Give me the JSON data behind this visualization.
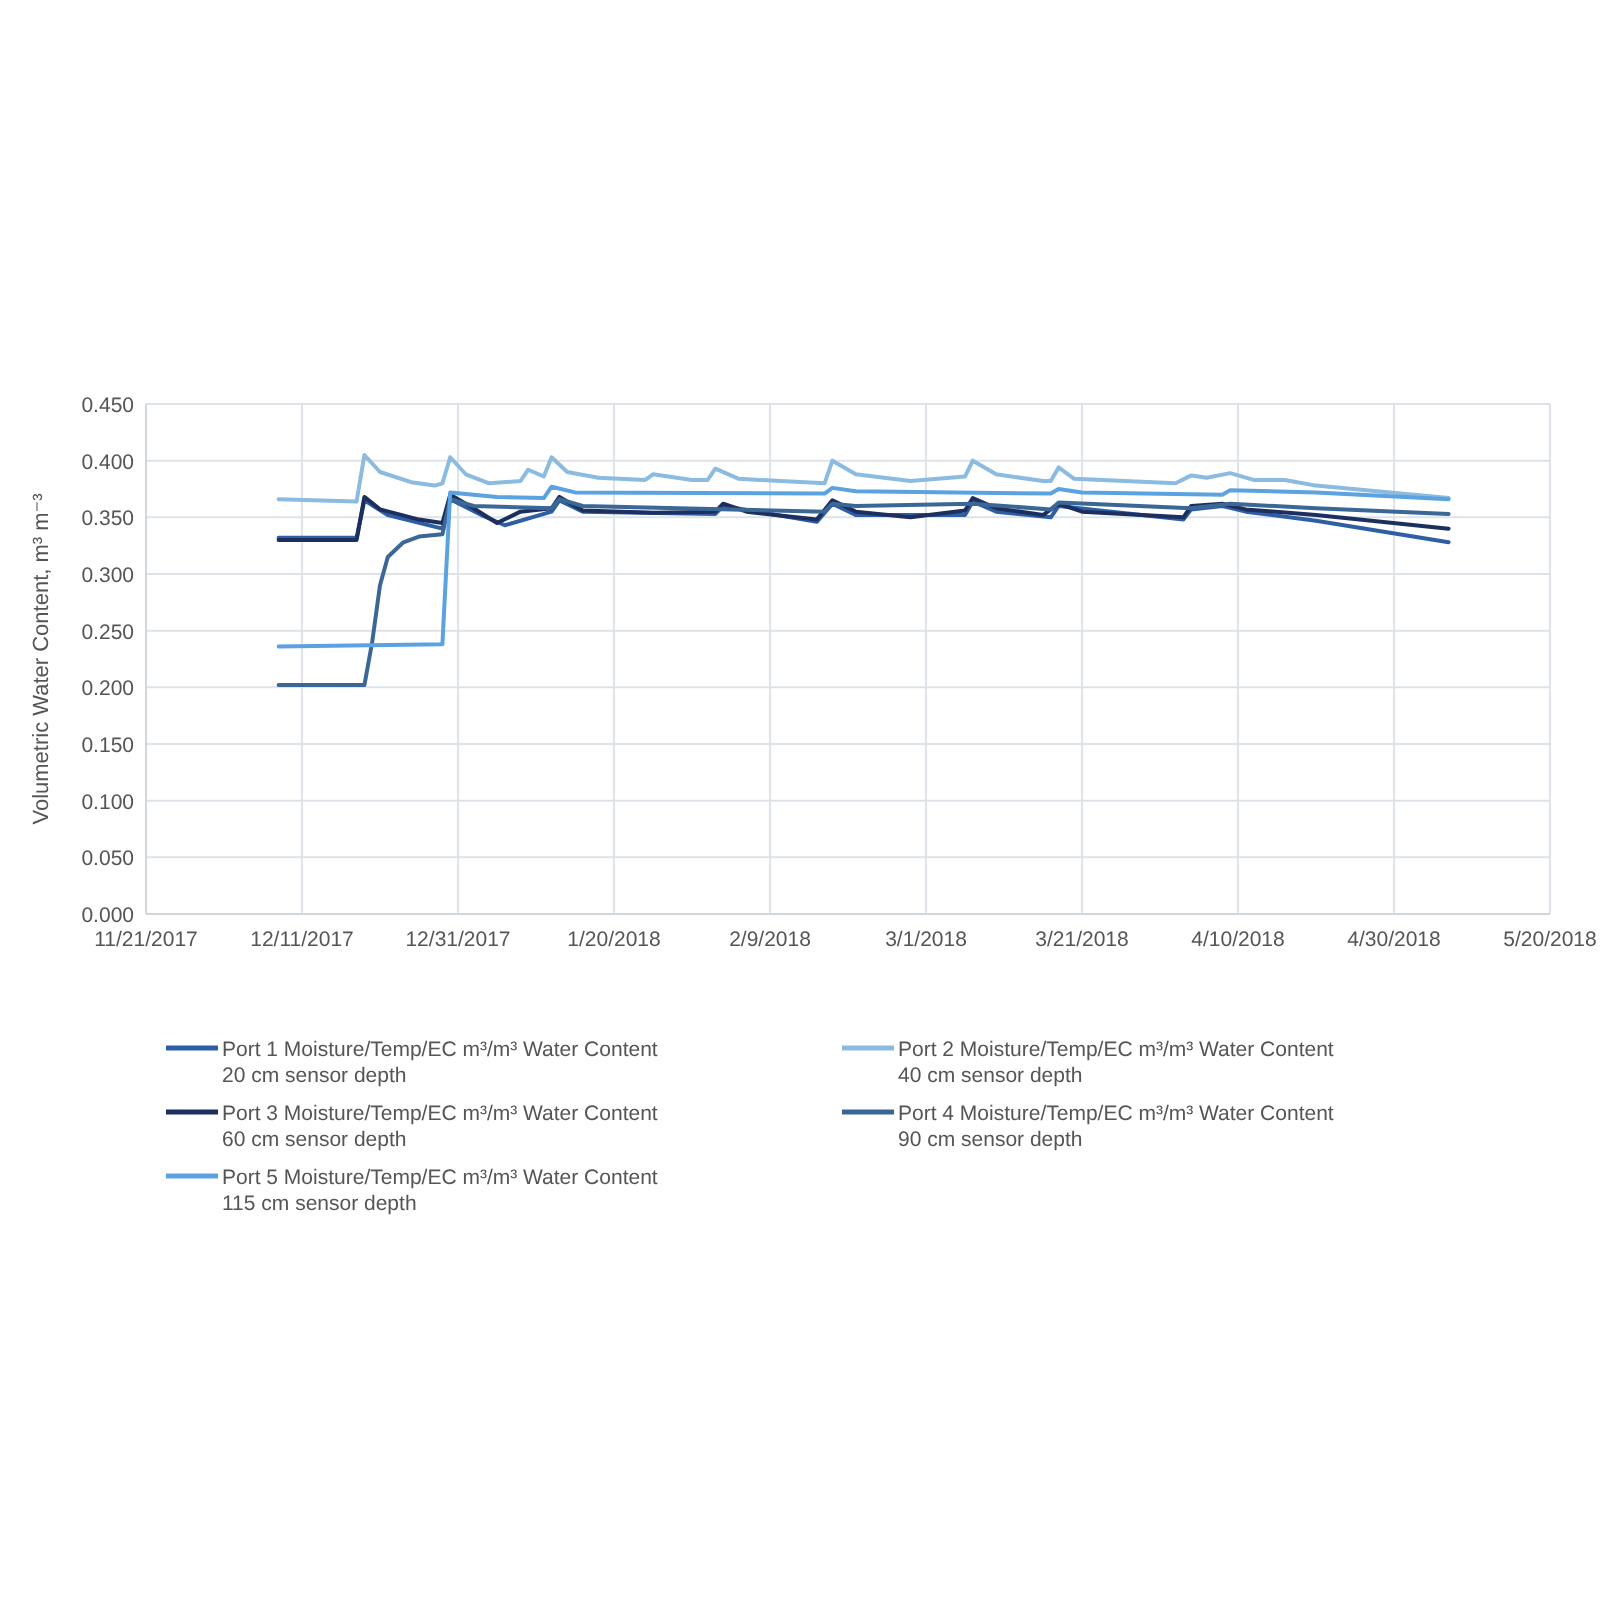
{
  "chart_data": {
    "type": "line",
    "ylabel": "Volumetric Water Content, m³ m⁻³",
    "xlim": [
      "2017-11-21",
      "2018-05-20"
    ],
    "xticks": [
      {
        "value": "2017-11-21",
        "label": "11/21/2017"
      },
      {
        "value": "2017-12-11",
        "label": "12/11/2017"
      },
      {
        "value": "2017-12-31",
        "label": "12/31/2017"
      },
      {
        "value": "2018-01-20",
        "label": "1/20/2018"
      },
      {
        "value": "2018-02-09",
        "label": "2/9/2018"
      },
      {
        "value": "2018-03-01",
        "label": "3/1/2018"
      },
      {
        "value": "2018-03-21",
        "label": "3/21/2018"
      },
      {
        "value": "2018-04-10",
        "label": "4/10/2018"
      },
      {
        "value": "2018-04-30",
        "label": "4/30/2018"
      },
      {
        "value": "2018-05-20",
        "label": "5/20/2018"
      }
    ],
    "ylim": [
      0,
      0.45
    ],
    "yticks": [
      {
        "value": 0,
        "label": "0.000"
      },
      {
        "value": 0.05,
        "label": "0.050"
      },
      {
        "value": 0.1,
        "label": "0.100"
      },
      {
        "value": 0.15,
        "label": "0.150"
      },
      {
        "value": 0.2,
        "label": "0.200"
      },
      {
        "value": 0.25,
        "label": "0.250"
      },
      {
        "value": 0.3,
        "label": "0.300"
      },
      {
        "value": 0.35,
        "label": "0.350"
      },
      {
        "value": 0.4,
        "label": "0.400"
      },
      {
        "value": 0.45,
        "label": "0.450"
      }
    ],
    "grid": true,
    "legend": "bottom",
    "line_style": "solid",
    "marker": "none",
    "series": [
      {
        "name": "Port 1 Moisture/Temp/EC m³/m³ Water Content\n20 cm sensor depth",
        "color": "#2e5fa6",
        "x": [
          "2017-12-08",
          "2017-12-18",
          "2017-12-19",
          "2017-12-22",
          "2017-12-29",
          "2017-12-30",
          "2018-01-03",
          "2018-01-06",
          "2018-01-12",
          "2018-01-13",
          "2018-01-16",
          "2018-02-02",
          "2018-02-03",
          "2018-02-15",
          "2018-02-17",
          "2018-02-20",
          "2018-03-06",
          "2018-03-07",
          "2018-03-10",
          "2018-03-17",
          "2018-03-18",
          "2018-04-03",
          "2018-04-04",
          "2018-04-08",
          "2018-04-11",
          "2018-04-20",
          "2018-05-07"
        ],
        "values": [
          0.332,
          0.332,
          0.365,
          0.352,
          0.34,
          0.366,
          0.352,
          0.343,
          0.355,
          0.365,
          0.355,
          0.353,
          0.36,
          0.346,
          0.362,
          0.352,
          0.352,
          0.364,
          0.355,
          0.35,
          0.36,
          0.348,
          0.357,
          0.36,
          0.355,
          0.347,
          0.328
        ]
      },
      {
        "name": "Port 2 Moisture/Temp/EC m³/m³ Water Content\n40 cm sensor depth",
        "color": "#8bbbe0",
        "x": [
          "2017-12-08",
          "2017-12-18",
          "2017-12-19",
          "2017-12-21",
          "2017-12-25",
          "2017-12-28",
          "2017-12-29",
          "2017-12-30",
          "2018-01-01",
          "2018-01-04",
          "2018-01-08",
          "2018-01-09",
          "2018-01-11",
          "2018-01-12",
          "2018-01-14",
          "2018-01-18",
          "2018-01-24",
          "2018-01-25",
          "2018-01-30",
          "2018-02-01",
          "2018-02-02",
          "2018-02-05",
          "2018-02-16",
          "2018-02-17",
          "2018-02-20",
          "2018-02-27",
          "2018-03-06",
          "2018-03-07",
          "2018-03-10",
          "2018-03-16",
          "2018-03-17",
          "2018-03-18",
          "2018-03-20",
          "2018-04-02",
          "2018-04-04",
          "2018-04-06",
          "2018-04-09",
          "2018-04-12",
          "2018-04-16",
          "2018-04-20",
          "2018-05-07"
        ],
        "values": [
          0.366,
          0.364,
          0.405,
          0.39,
          0.381,
          0.378,
          0.38,
          0.403,
          0.388,
          0.38,
          0.382,
          0.392,
          0.386,
          0.403,
          0.39,
          0.385,
          0.383,
          0.388,
          0.383,
          0.383,
          0.393,
          0.384,
          0.38,
          0.4,
          0.388,
          0.382,
          0.386,
          0.4,
          0.388,
          0.382,
          0.382,
          0.394,
          0.384,
          0.38,
          0.387,
          0.385,
          0.389,
          0.383,
          0.383,
          0.378,
          0.367
        ]
      },
      {
        "name": "Port 3 Moisture/Temp/EC m³/m³ Water Content\n60 cm sensor depth",
        "color": "#1c2f5e",
        "x": [
          "2017-12-08",
          "2017-12-18",
          "2017-12-19",
          "2017-12-21",
          "2017-12-26",
          "2017-12-29",
          "2017-12-30",
          "2018-01-02",
          "2018-01-05",
          "2018-01-08",
          "2018-01-12",
          "2018-01-13",
          "2018-01-16",
          "2018-01-25",
          "2018-02-02",
          "2018-02-03",
          "2018-02-06",
          "2018-02-15",
          "2018-02-17",
          "2018-02-20",
          "2018-02-27",
          "2018-03-06",
          "2018-03-07",
          "2018-03-10",
          "2018-03-16",
          "2018-03-18",
          "2018-03-21",
          "2018-04-03",
          "2018-04-04",
          "2018-04-08",
          "2018-04-11",
          "2018-04-20",
          "2018-05-07"
        ],
        "values": [
          0.33,
          0.33,
          0.368,
          0.357,
          0.348,
          0.345,
          0.37,
          0.358,
          0.345,
          0.355,
          0.358,
          0.368,
          0.356,
          0.354,
          0.355,
          0.362,
          0.355,
          0.348,
          0.365,
          0.355,
          0.35,
          0.356,
          0.367,
          0.358,
          0.352,
          0.362,
          0.355,
          0.35,
          0.36,
          0.362,
          0.357,
          0.352,
          0.34
        ]
      },
      {
        "name": "Port 4 Moisture/Temp/EC m³/m³ Water Content\n90 cm sensor depth",
        "color": "#3b6797",
        "x": [
          "2017-12-08",
          "2017-12-19",
          "2017-12-20",
          "2017-12-21",
          "2017-12-22",
          "2017-12-24",
          "2017-12-26",
          "2017-12-29",
          "2017-12-30",
          "2018-01-02",
          "2018-01-12",
          "2018-01-13",
          "2018-01-16",
          "2018-02-16",
          "2018-02-17",
          "2018-02-20",
          "2018-03-07",
          "2018-03-17",
          "2018-03-18",
          "2018-04-04",
          "2018-04-09",
          "2018-04-20",
          "2018-05-07"
        ],
        "values": [
          0.202,
          0.202,
          0.24,
          0.29,
          0.315,
          0.328,
          0.333,
          0.335,
          0.366,
          0.36,
          0.358,
          0.366,
          0.36,
          0.355,
          0.362,
          0.36,
          0.362,
          0.357,
          0.363,
          0.358,
          0.362,
          0.358,
          0.353
        ]
      },
      {
        "name": "Port 5 Moisture/Temp/EC m³/m³ Water Content\n115 cm sensor depth",
        "color": "#5aa2e0",
        "x": [
          "2017-12-08",
          "2017-12-29",
          "2017-12-30",
          "2018-01-05",
          "2018-01-11",
          "2018-01-12",
          "2018-01-15",
          "2018-02-16",
          "2018-02-17",
          "2018-02-20",
          "2018-03-17",
          "2018-03-18",
          "2018-03-21",
          "2018-04-08",
          "2018-04-09",
          "2018-04-20",
          "2018-05-07"
        ],
        "values": [
          0.236,
          0.238,
          0.372,
          0.368,
          0.367,
          0.377,
          0.372,
          0.371,
          0.376,
          0.373,
          0.371,
          0.375,
          0.372,
          0.37,
          0.374,
          0.372,
          0.366
        ]
      }
    ]
  }
}
